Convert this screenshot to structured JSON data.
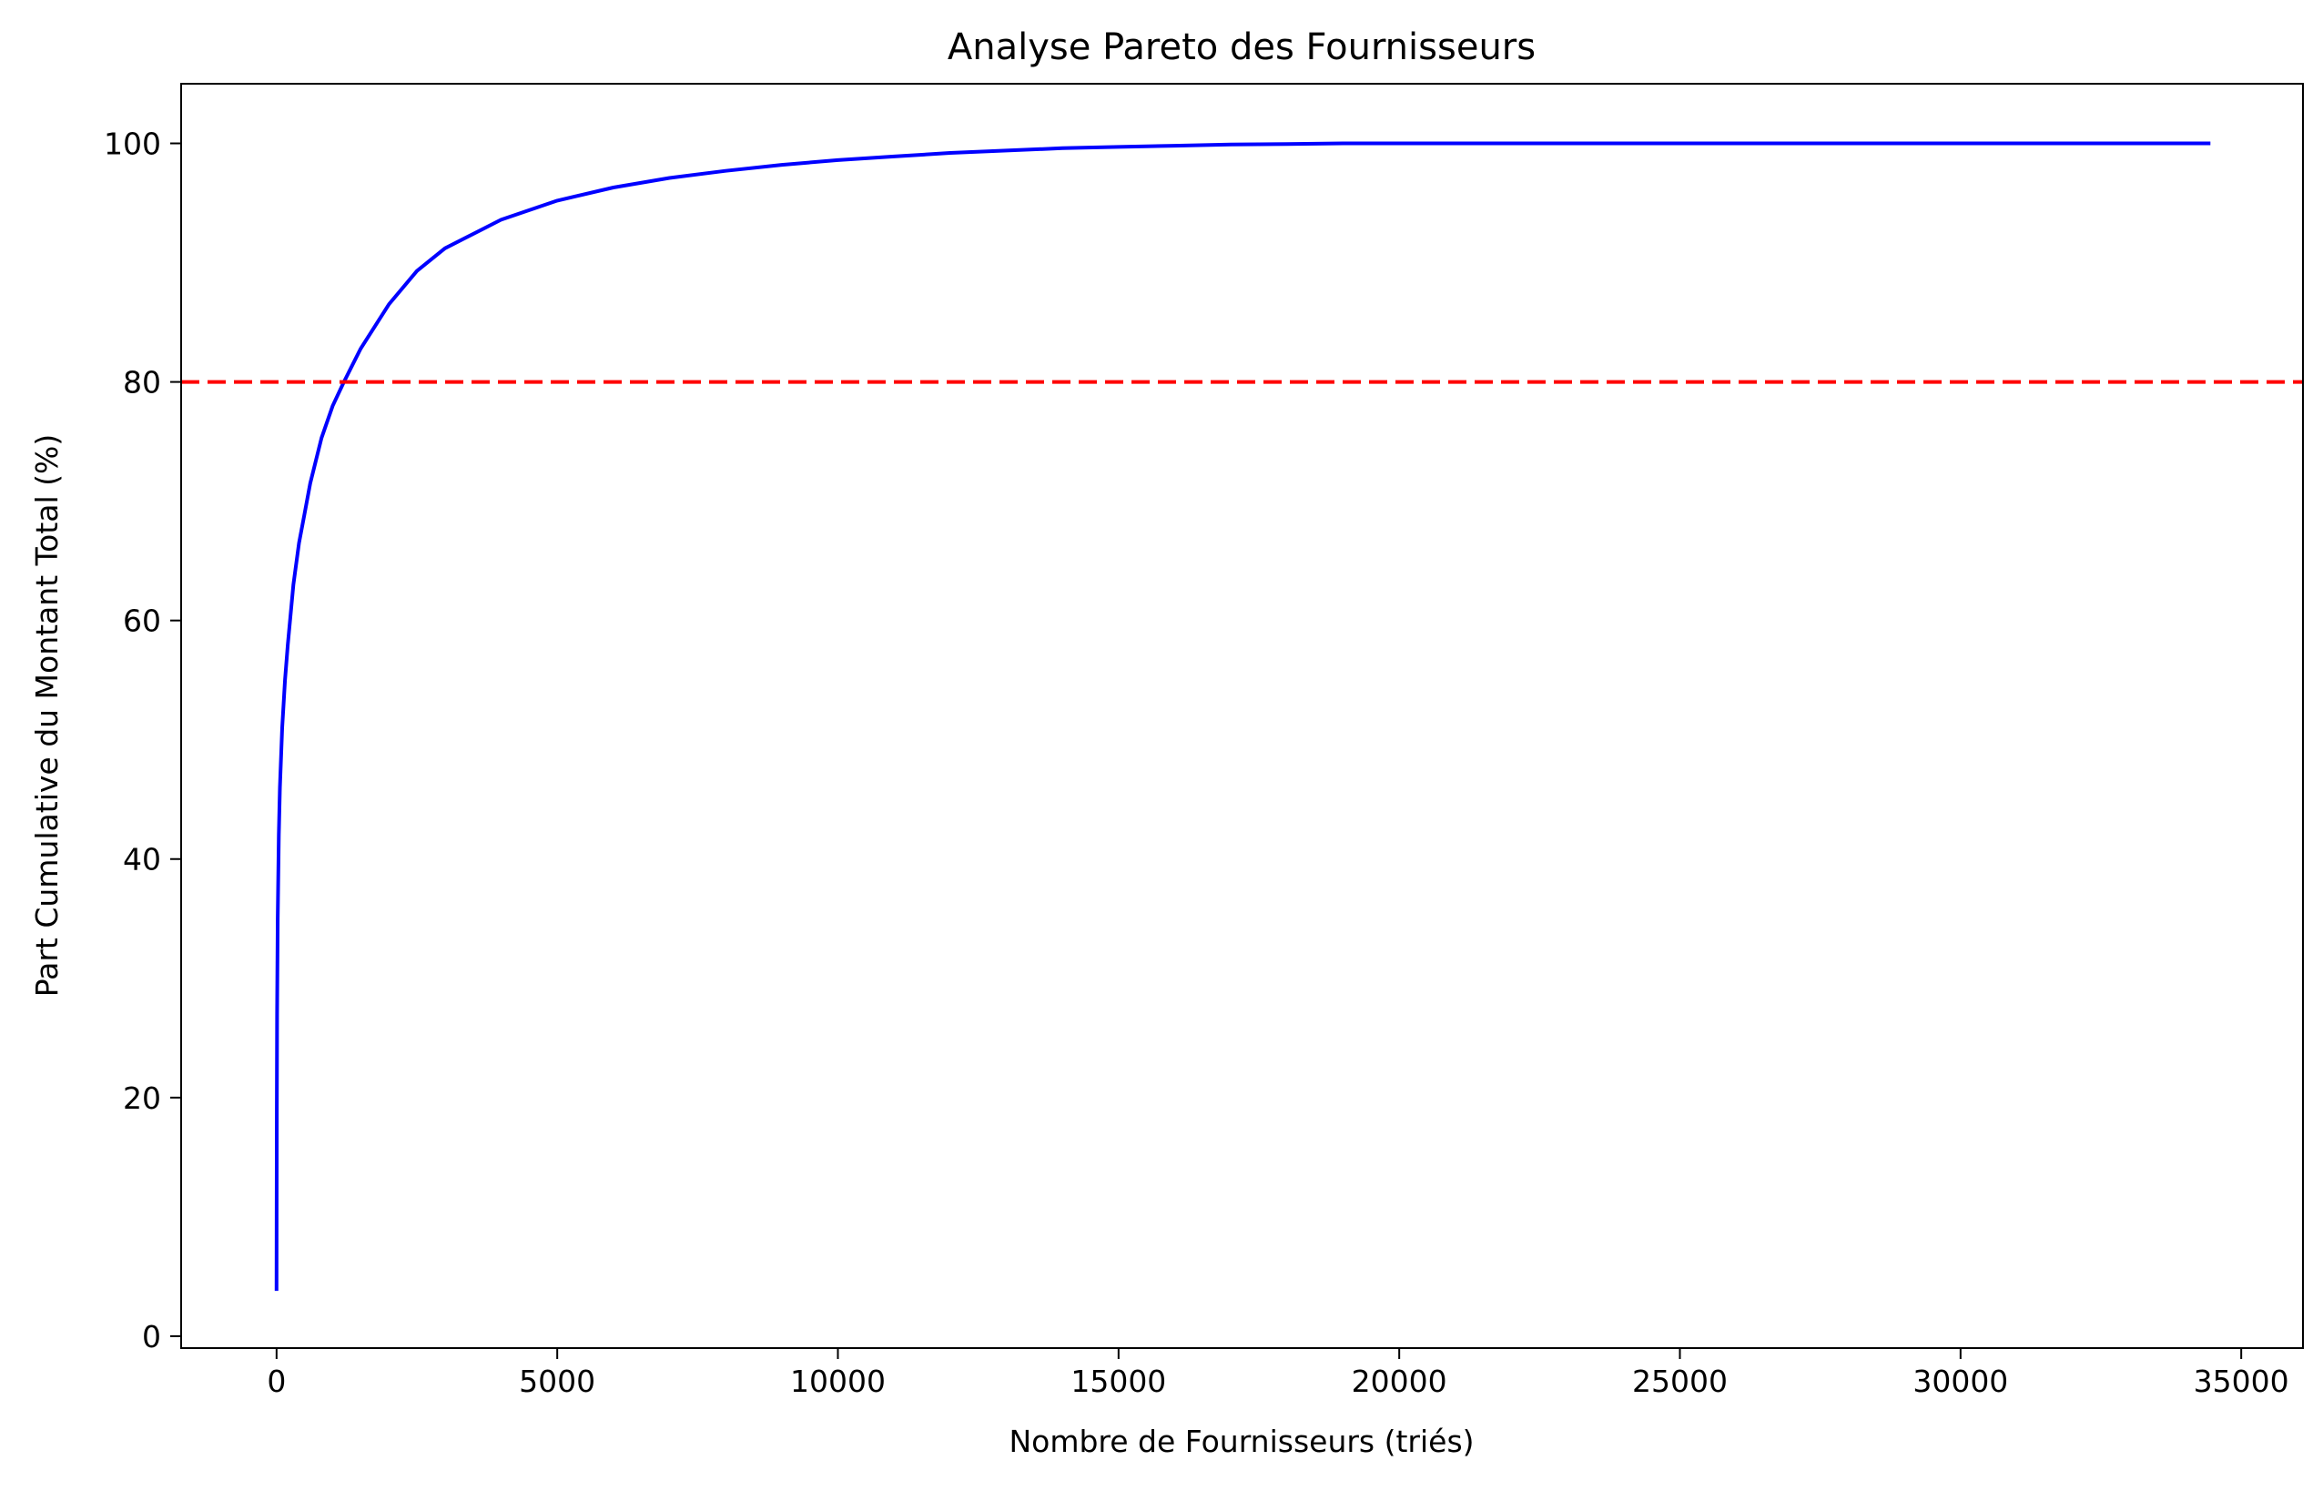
{
  "chart_data": {
    "type": "line",
    "title": "Analyse Pareto des Fournisseurs",
    "xlabel": "Nombre de Fournisseurs (triés)",
    "ylabel": "Part Cumulative du Montant Total (%)",
    "xlim": [
      -1700,
      36100
    ],
    "ylim": [
      -1,
      105
    ],
    "xticks": [
      0,
      5000,
      10000,
      15000,
      20000,
      25000,
      30000,
      35000
    ],
    "yticks": [
      0,
      20,
      40,
      60,
      80,
      100
    ],
    "grid": false,
    "colors": {
      "curve": "#0000ff",
      "threshold": "#ff0000"
    },
    "series": [
      {
        "style": "solid",
        "x": [
          0,
          1,
          5,
          10,
          20,
          40,
          60,
          100,
          150,
          200,
          300,
          400,
          500,
          600,
          800,
          1000,
          1200,
          1500,
          2000,
          2500,
          3000,
          4000,
          5000,
          6000,
          7000,
          8000,
          9000,
          10000,
          11000,
          12000,
          13000,
          14000,
          15000,
          16000,
          17000,
          18000,
          19000,
          20000,
          25000,
          30000,
          34450
        ],
        "y": [
          3.8,
          10,
          19,
          27,
          35,
          42,
          46,
          51,
          55,
          58,
          63,
          66.5,
          69,
          71.5,
          75.3,
          78,
          80,
          82.8,
          86.5,
          89.3,
          91.2,
          93.6,
          95.2,
          96.3,
          97.1,
          97.7,
          98.2,
          98.6,
          98.9,
          99.2,
          99.4,
          99.6,
          99.7,
          99.8,
          99.9,
          99.95,
          100,
          100,
          100,
          100,
          100
        ]
      },
      {
        "style": "dashed",
        "x": [
          -1700,
          36100
        ],
        "y": [
          80,
          80
        ]
      }
    ]
  }
}
